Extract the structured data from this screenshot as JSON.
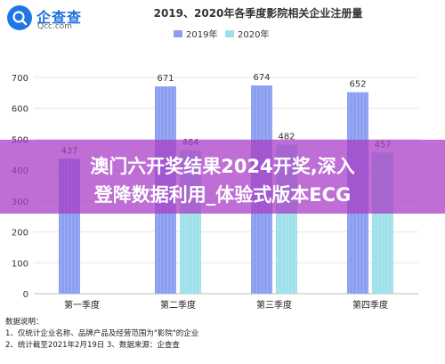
{
  "logo": {
    "brand": "企查查",
    "domain": "Qcc.com"
  },
  "chart_data": {
    "type": "bar",
    "title": "2019、2020年各季度影院相关企业注册量",
    "categories": [
      "第一季度",
      "第二季度",
      "第三季度",
      "第四季度"
    ],
    "series": [
      {
        "name": "2019年",
        "values": [
          437,
          671,
          674,
          652
        ],
        "color": "#8b9ef0"
      },
      {
        "name": "2020年",
        "values": [
          null,
          464,
          482,
          457
        ],
        "color": "#9ee0ea"
      }
    ],
    "yticks": [
      0,
      100,
      200,
      300,
      400,
      500,
      600,
      700
    ],
    "ylim": [
      0,
      700
    ],
    "grid": true,
    "legend_position": "top-center",
    "xlabel": "",
    "ylabel": ""
  },
  "notes": [
    "数据说明：",
    "1、仅统计企业名称、品牌产品及经营范围为\"影院\"的企业",
    "2、统计截至2021年2月19日      3、数据来源：企查查"
  ],
  "overlay": {
    "line1": "澳门六开奖结果2024开奖,深入",
    "line2": "登降数据利用_体验式版本ECG"
  }
}
